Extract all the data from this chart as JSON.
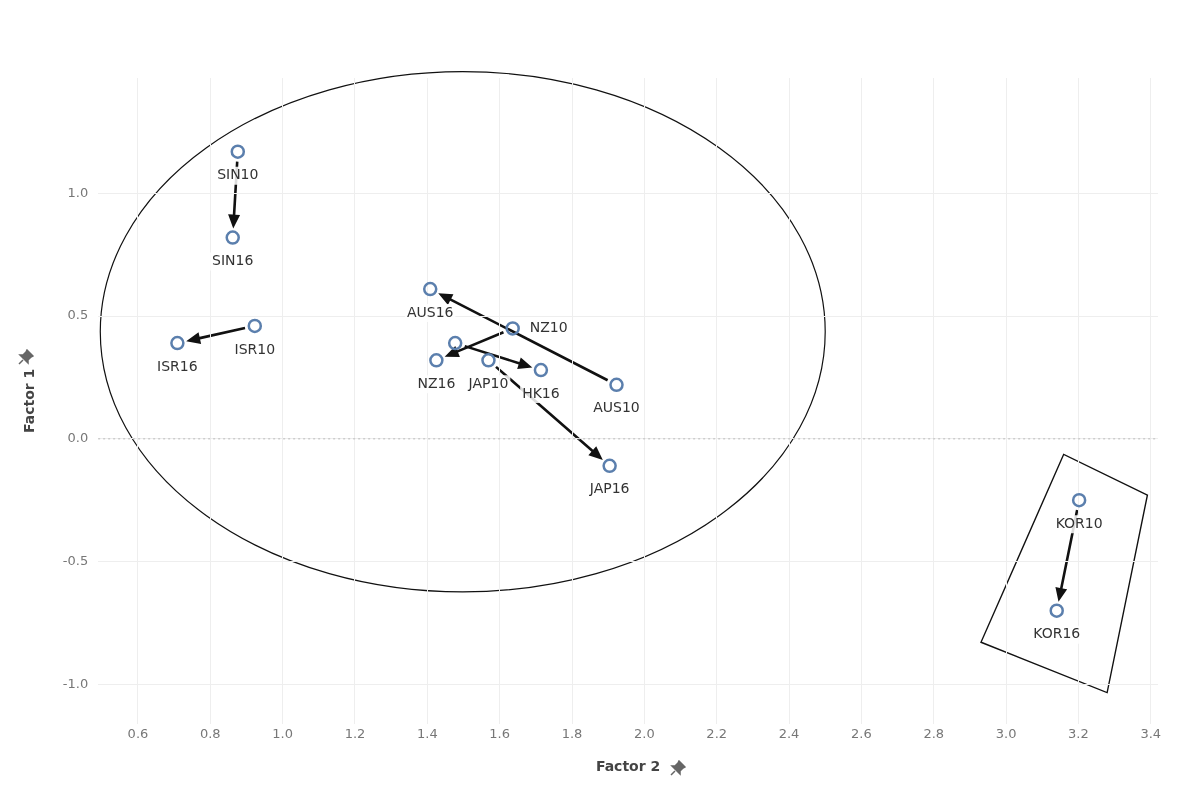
{
  "chart_data": {
    "type": "scatter",
    "xlabel": "Factor 2",
    "ylabel": "Factor 1",
    "x": [
      0.876,
      0.862,
      0.923,
      0.709,
      1.408,
      1.636,
      1.477,
      1.425,
      1.569,
      1.714,
      1.923,
      1.904,
      3.202,
      3.14
    ],
    "series": [
      {
        "color": "#5b7fad",
        "values": [
          1.17,
          0.82,
          0.46,
          0.39,
          0.61,
          0.45,
          0.39,
          0.32,
          0.32,
          0.28,
          0.22,
          -0.11,
          -0.25,
          -0.7
        ]
      }
    ],
    "xlim": [
      0.49,
      3.42
    ],
    "ylim": [
      -1.16,
      1.47
    ],
    "xticks": [
      {
        "value": 0.6,
        "label": "0.6"
      },
      {
        "value": 0.8,
        "label": "0.8"
      },
      {
        "value": 1.0,
        "label": "1.0"
      },
      {
        "value": 1.2,
        "label": "1.2"
      },
      {
        "value": 1.4,
        "label": "1.4"
      },
      {
        "value": 1.6,
        "label": "1.6"
      },
      {
        "value": 1.8,
        "label": "1.8"
      },
      {
        "value": 2.0,
        "label": "2.0"
      },
      {
        "value": 2.2,
        "label": "2.2"
      },
      {
        "value": 2.4,
        "label": "2.4"
      },
      {
        "value": 2.6,
        "label": "2.6"
      },
      {
        "value": 2.8,
        "label": "2.8"
      },
      {
        "value": 3.0,
        "label": "3.0"
      },
      {
        "value": 3.2,
        "label": "3.2"
      },
      {
        "value": 3.4,
        "label": "3.4"
      }
    ],
    "yticks": [
      {
        "value": -1.0,
        "label": "-1.0"
      },
      {
        "value": -0.5,
        "label": "-0.5"
      },
      {
        "value": 0.0,
        "label": "0.0"
      },
      {
        "value": 0.5,
        "label": "0.5"
      },
      {
        "value": 1.0,
        "label": "1.0"
      }
    ],
    "grid": true,
    "legend": false,
    "marker": "circle",
    "ref_lines": [
      {
        "axis": "y",
        "value": 0,
        "line_style": "dotted",
        "color": "#bbbbbb"
      }
    ],
    "annotations": [
      {
        "text": "SIN10",
        "x": 0.876,
        "y": 1.17
      },
      {
        "text": "SIN16",
        "x": 0.862,
        "y": 0.82
      },
      {
        "text": "ISR10",
        "x": 0.923,
        "y": 0.46
      },
      {
        "text": "ISR16",
        "x": 0.709,
        "y": 0.39
      },
      {
        "text": "AUS16",
        "x": 1.408,
        "y": 0.61
      },
      {
        "text": "NZ10",
        "x": 1.636,
        "y": 0.45
      },
      {
        "text": "NZ16",
        "x": 1.425,
        "y": 0.32
      },
      {
        "text": "JAP10",
        "x": 1.569,
        "y": 0.32
      },
      {
        "text": "HK16",
        "x": 1.714,
        "y": 0.28
      },
      {
        "text": "AUS10",
        "x": 1.923,
        "y": 0.22
      },
      {
        "text": "JAP16",
        "x": 1.904,
        "y": -0.11
      },
      {
        "text": "KOR10",
        "x": 3.202,
        "y": -0.25
      },
      {
        "text": "KOR16",
        "x": 3.14,
        "y": -0.7
      }
    ]
  }
}
